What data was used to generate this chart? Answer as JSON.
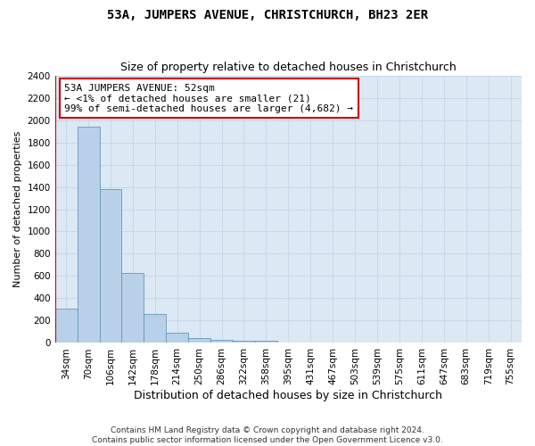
{
  "title": "53A, JUMPERS AVENUE, CHRISTCHURCH, BH23 2ER",
  "subtitle": "Size of property relative to detached houses in Christchurch",
  "xlabel": "Distribution of detached houses by size in Christchurch",
  "ylabel": "Number of detached properties",
  "categories": [
    "34sqm",
    "70sqm",
    "106sqm",
    "142sqm",
    "178sqm",
    "214sqm",
    "250sqm",
    "286sqm",
    "322sqm",
    "358sqm",
    "395sqm",
    "431sqm",
    "467sqm",
    "503sqm",
    "539sqm",
    "575sqm",
    "611sqm",
    "647sqm",
    "683sqm",
    "719sqm",
    "755sqm"
  ],
  "values": [
    310,
    1940,
    1380,
    630,
    260,
    90,
    45,
    25,
    20,
    20,
    0,
    0,
    0,
    0,
    0,
    0,
    0,
    0,
    0,
    0,
    0
  ],
  "bar_color": "#b8d0e8",
  "bar_edge_color": "#6699bb",
  "highlight_color": "#cc0000",
  "annotation_text": "53A JUMPERS AVENUE: 52sqm\n← <1% of detached houses are smaller (21)\n99% of semi-detached houses are larger (4,682) →",
  "annotation_box_color": "#ffffff",
  "annotation_box_edge": "#cc0000",
  "ylim": [
    0,
    2400
  ],
  "yticks": [
    0,
    200,
    400,
    600,
    800,
    1000,
    1200,
    1400,
    1600,
    1800,
    2000,
    2200,
    2400
  ],
  "grid_color": "#c8d8e8",
  "background_color": "#dce8f4",
  "footnote": "Contains HM Land Registry data © Crown copyright and database right 2024.\nContains public sector information licensed under the Open Government Licence v3.0.",
  "title_fontsize": 10,
  "subtitle_fontsize": 9,
  "xlabel_fontsize": 9,
  "ylabel_fontsize": 8,
  "tick_fontsize": 7.5,
  "annotation_fontsize": 8,
  "footnote_fontsize": 6.5
}
